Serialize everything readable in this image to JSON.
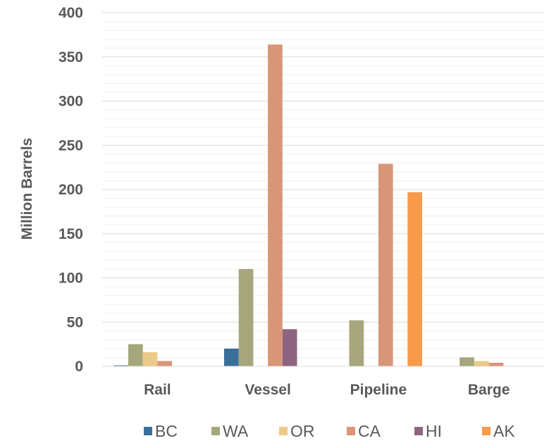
{
  "chart_data": {
    "type": "bar",
    "title": "",
    "xlabel": "",
    "ylabel": "Million Barrels",
    "categories": [
      "Rail",
      "Vessel",
      "Pipeline",
      "Barge"
    ],
    "ylim": [
      0,
      400
    ],
    "yticks": [
      0,
      50,
      100,
      150,
      200,
      250,
      300,
      350,
      400
    ],
    "ytick_labels": [
      "0",
      "50",
      "100",
      "150",
      "200",
      "250",
      "300",
      "350",
      "400"
    ],
    "grid": true,
    "legend_position": "bottom",
    "series": [
      {
        "name": "BC",
        "color": "#3a6f9a",
        "values": [
          1,
          20,
          0,
          0
        ]
      },
      {
        "name": "WA",
        "color": "#a5a67c",
        "values": [
          25,
          110,
          52,
          10
        ]
      },
      {
        "name": "OR",
        "color": "#ebca8a",
        "values": [
          16,
          0,
          0,
          6
        ]
      },
      {
        "name": "CA",
        "color": "#d89679",
        "values": [
          6,
          364,
          229,
          4
        ]
      },
      {
        "name": "HI",
        "color": "#8e6580",
        "values": [
          0,
          42,
          0,
          0
        ]
      },
      {
        "name": "AK",
        "color": "#f79a4b",
        "values": [
          0,
          0,
          197,
          0
        ]
      }
    ]
  }
}
